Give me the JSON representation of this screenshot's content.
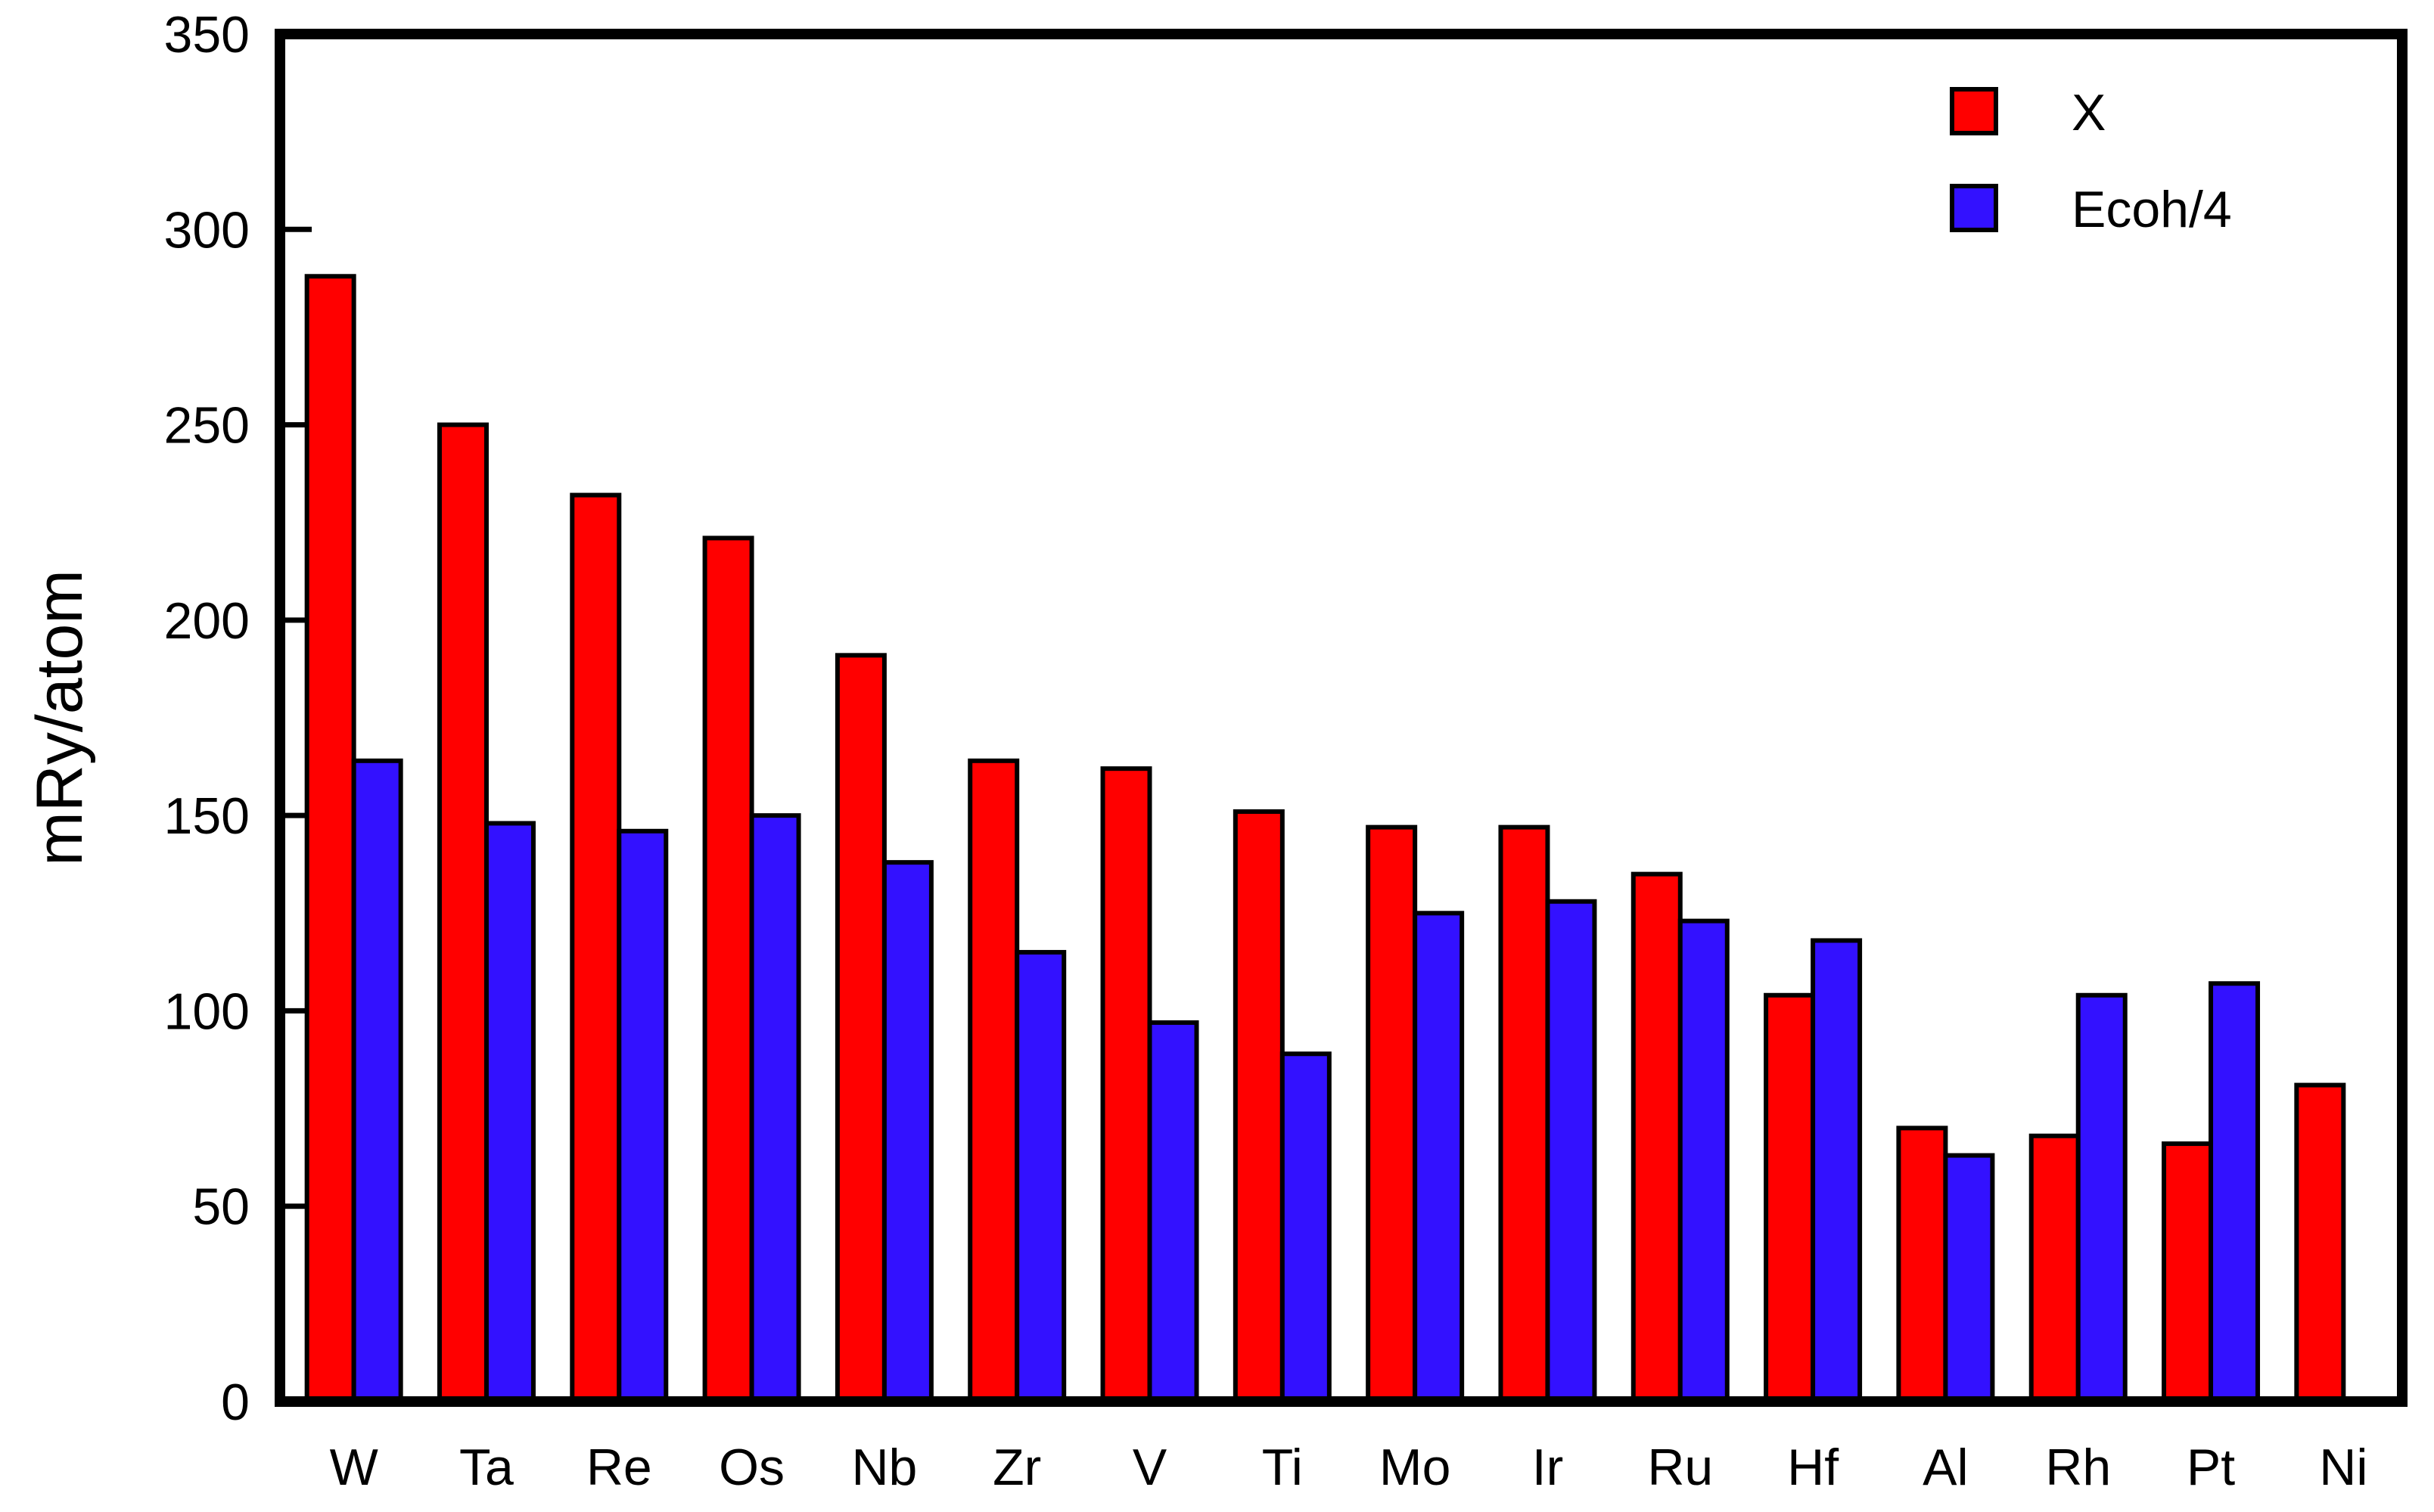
{
  "chart_data": {
    "type": "bar",
    "title": "",
    "xlabel": "",
    "ylabel": "mRy/atom",
    "ylim": [
      0,
      350
    ],
    "yticks": [
      "0",
      "50",
      "100",
      "150",
      "200",
      "250",
      "300",
      "350"
    ],
    "grid": false,
    "legend_position": "top-right",
    "categories": [
      "W",
      "Ta",
      "Re",
      "Os",
      "Nb",
      "Zr",
      "V",
      "Ti",
      "Mo",
      "Ir",
      "Ru",
      "Hf",
      "Al",
      "Rh",
      "Pt",
      "Ni"
    ],
    "series": [
      {
        "name": "X",
        "color": "#ff0000",
        "values": [
          288,
          250,
          232,
          221,
          191,
          164,
          162,
          151,
          147,
          147,
          135,
          104,
          70,
          68,
          66,
          81
        ]
      },
      {
        "name": "Ecoh/4",
        "color": "#3311ff",
        "values": [
          164,
          148,
          146,
          150,
          138,
          115,
          97,
          89,
          125,
          128,
          123,
          118,
          63,
          104,
          107,
          null
        ]
      }
    ]
  }
}
